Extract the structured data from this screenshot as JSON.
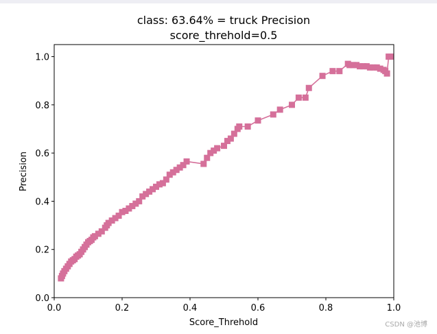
{
  "chart_data": {
    "type": "line",
    "title": "class: 63.64% = truck Precision",
    "subtitle": "score_threhold=0.5",
    "xlabel": "Score_Threhold",
    "ylabel": "Precision",
    "xlim": [
      0,
      1
    ],
    "ylim": [
      0,
      1.05
    ],
    "xticks": [
      "0.0",
      "0.2",
      "0.4",
      "0.6",
      "0.8",
      "1.0"
    ],
    "yticks": [
      "0.0",
      "0.2",
      "0.4",
      "0.6",
      "0.8",
      "1.0"
    ],
    "grid": false,
    "color": "#d5709a",
    "marker": "square",
    "series": [
      {
        "x": [
          0.02,
          0.023,
          0.026,
          0.03,
          0.035,
          0.04,
          0.045,
          0.05,
          0.055,
          0.06,
          0.065,
          0.07,
          0.075,
          0.08,
          0.085,
          0.09,
          0.095,
          0.1,
          0.105,
          0.11,
          0.115,
          0.12,
          0.13,
          0.14,
          0.15,
          0.155,
          0.16,
          0.17,
          0.18,
          0.19,
          0.2,
          0.21,
          0.22,
          0.23,
          0.24,
          0.25,
          0.26,
          0.27,
          0.28,
          0.29,
          0.3,
          0.31,
          0.32,
          0.33,
          0.34,
          0.35,
          0.36,
          0.37,
          0.38,
          0.39,
          0.44,
          0.45,
          0.46,
          0.47,
          0.48,
          0.5,
          0.51,
          0.52,
          0.53,
          0.54,
          0.545,
          0.57,
          0.6,
          0.645,
          0.665,
          0.7,
          0.72,
          0.74,
          0.75,
          0.79,
          0.82,
          0.84,
          0.865,
          0.87,
          0.88,
          0.89,
          0.9,
          0.91,
          0.92,
          0.93,
          0.94,
          0.95,
          0.96,
          0.97,
          0.975,
          0.98,
          0.985,
          0.99
        ],
        "y": [
          0.08,
          0.09,
          0.1,
          0.11,
          0.12,
          0.13,
          0.14,
          0.15,
          0.155,
          0.16,
          0.17,
          0.175,
          0.18,
          0.19,
          0.2,
          0.21,
          0.22,
          0.23,
          0.235,
          0.24,
          0.25,
          0.255,
          0.265,
          0.275,
          0.29,
          0.3,
          0.31,
          0.32,
          0.33,
          0.34,
          0.355,
          0.36,
          0.37,
          0.38,
          0.39,
          0.4,
          0.42,
          0.43,
          0.44,
          0.45,
          0.46,
          0.47,
          0.475,
          0.49,
          0.51,
          0.52,
          0.53,
          0.54,
          0.55,
          0.565,
          0.555,
          0.58,
          0.6,
          0.61,
          0.62,
          0.63,
          0.65,
          0.66,
          0.68,
          0.7,
          0.71,
          0.71,
          0.735,
          0.76,
          0.78,
          0.8,
          0.83,
          0.83,
          0.87,
          0.92,
          0.94,
          0.94,
          0.97,
          0.965,
          0.965,
          0.965,
          0.96,
          0.96,
          0.96,
          0.955,
          0.955,
          0.955,
          0.95,
          0.945,
          0.94,
          0.93,
          1.0,
          1.0
        ]
      }
    ]
  },
  "watermark": "CSDN @池博"
}
